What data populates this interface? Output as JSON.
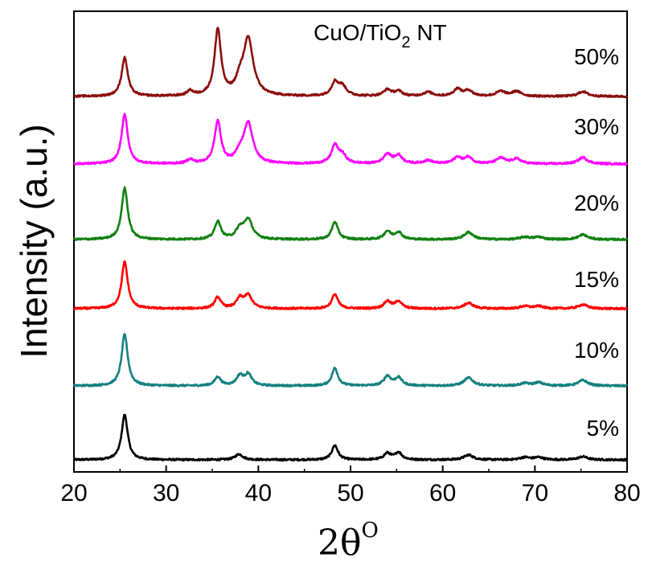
{
  "chart_data": {
    "type": "line",
    "title": "",
    "annotation_main": "CuO/TiO",
    "annotation_sub": "2",
    "annotation_tail": " NT",
    "xlabel_main": "2θ",
    "xlabel_sup": "O",
    "ylabel": "Intensity (a.u.)",
    "xlim": [
      20,
      80
    ],
    "xticks": [
      20,
      30,
      40,
      50,
      60,
      70,
      80
    ],
    "series": [
      {
        "name": "5%",
        "color": "#000000",
        "offset": 0,
        "peaks": [
          [
            25.5,
            56,
            0.4
          ],
          [
            37.9,
            7,
            0.5
          ],
          [
            48.3,
            18,
            0.4
          ],
          [
            54.0,
            8,
            0.45
          ],
          [
            55.2,
            9,
            0.45
          ],
          [
            62.8,
            6,
            0.6
          ],
          [
            68.9,
            3,
            0.6
          ],
          [
            70.4,
            3,
            0.6
          ],
          [
            75.2,
            4,
            0.6
          ]
        ]
      },
      {
        "name": "10%",
        "color": "#168080",
        "offset": 92,
        "peaks": [
          [
            25.5,
            64,
            0.4
          ],
          [
            35.6,
            11,
            0.4
          ],
          [
            38.0,
            12,
            0.45
          ],
          [
            38.9,
            14,
            0.45
          ],
          [
            48.3,
            22,
            0.4
          ],
          [
            54.0,
            12,
            0.45
          ],
          [
            55.2,
            10,
            0.45
          ],
          [
            62.8,
            10,
            0.6
          ],
          [
            68.9,
            3,
            0.6
          ],
          [
            70.4,
            4,
            0.6
          ],
          [
            75.2,
            7,
            0.6
          ]
        ]
      },
      {
        "name": "15%",
        "color": "#ff0000",
        "offset": 188,
        "peaks": [
          [
            25.5,
            58,
            0.4
          ],
          [
            35.6,
            14,
            0.4
          ],
          [
            38.0,
            12,
            0.45
          ],
          [
            38.9,
            16,
            0.5
          ],
          [
            48.3,
            18,
            0.4
          ],
          [
            54.0,
            9,
            0.45
          ],
          [
            55.2,
            9,
            0.45
          ],
          [
            62.8,
            7,
            0.6
          ],
          [
            68.9,
            3,
            0.6
          ],
          [
            70.4,
            3,
            0.6
          ],
          [
            75.2,
            5,
            0.6
          ]
        ]
      },
      {
        "name": "20%",
        "color": "#108010",
        "offset": 274,
        "peaks": [
          [
            25.5,
            64,
            0.4
          ],
          [
            35.6,
            22,
            0.4
          ],
          [
            38.0,
            12,
            0.5
          ],
          [
            38.9,
            24,
            0.55
          ],
          [
            48.3,
            22,
            0.4
          ],
          [
            54.0,
            10,
            0.45
          ],
          [
            55.2,
            9,
            0.45
          ],
          [
            62.8,
            9,
            0.6
          ],
          [
            68.9,
            3,
            0.6
          ],
          [
            70.4,
            3,
            0.6
          ],
          [
            75.2,
            6,
            0.6
          ]
        ]
      },
      {
        "name": "30%",
        "color": "#ff00ff",
        "offset": 368,
        "peaks": [
          [
            25.5,
            62,
            0.4
          ],
          [
            32.6,
            5,
            0.4
          ],
          [
            35.6,
            52,
            0.42
          ],
          [
            38.0,
            10,
            0.5
          ],
          [
            38.9,
            50,
            0.6
          ],
          [
            48.3,
            22,
            0.45
          ],
          [
            49.1,
            10,
            0.5
          ],
          [
            54.0,
            12,
            0.5
          ],
          [
            55.2,
            10,
            0.5
          ],
          [
            58.4,
            4,
            0.6
          ],
          [
            61.6,
            8,
            0.5
          ],
          [
            62.8,
            8,
            0.5
          ],
          [
            66.3,
            7,
            0.6
          ],
          [
            68.0,
            6,
            0.6
          ],
          [
            75.2,
            8,
            0.6
          ]
        ]
      },
      {
        "name": "50%",
        "color": "#8b0d0d",
        "offset": 452,
        "peaks": [
          [
            25.5,
            48,
            0.4
          ],
          [
            32.6,
            6,
            0.4
          ],
          [
            35.6,
            82,
            0.42
          ],
          [
            38.0,
            14,
            0.5
          ],
          [
            38.9,
            70,
            0.65
          ],
          [
            48.3,
            16,
            0.45
          ],
          [
            49.1,
            12,
            0.55
          ],
          [
            54.0,
            8,
            0.5
          ],
          [
            55.2,
            6,
            0.5
          ],
          [
            58.4,
            5,
            0.6
          ],
          [
            61.6,
            9,
            0.5
          ],
          [
            62.8,
            7,
            0.5
          ],
          [
            66.3,
            6,
            0.6
          ],
          [
            68.0,
            6,
            0.6
          ],
          [
            75.2,
            6,
            0.6
          ]
        ]
      }
    ]
  }
}
